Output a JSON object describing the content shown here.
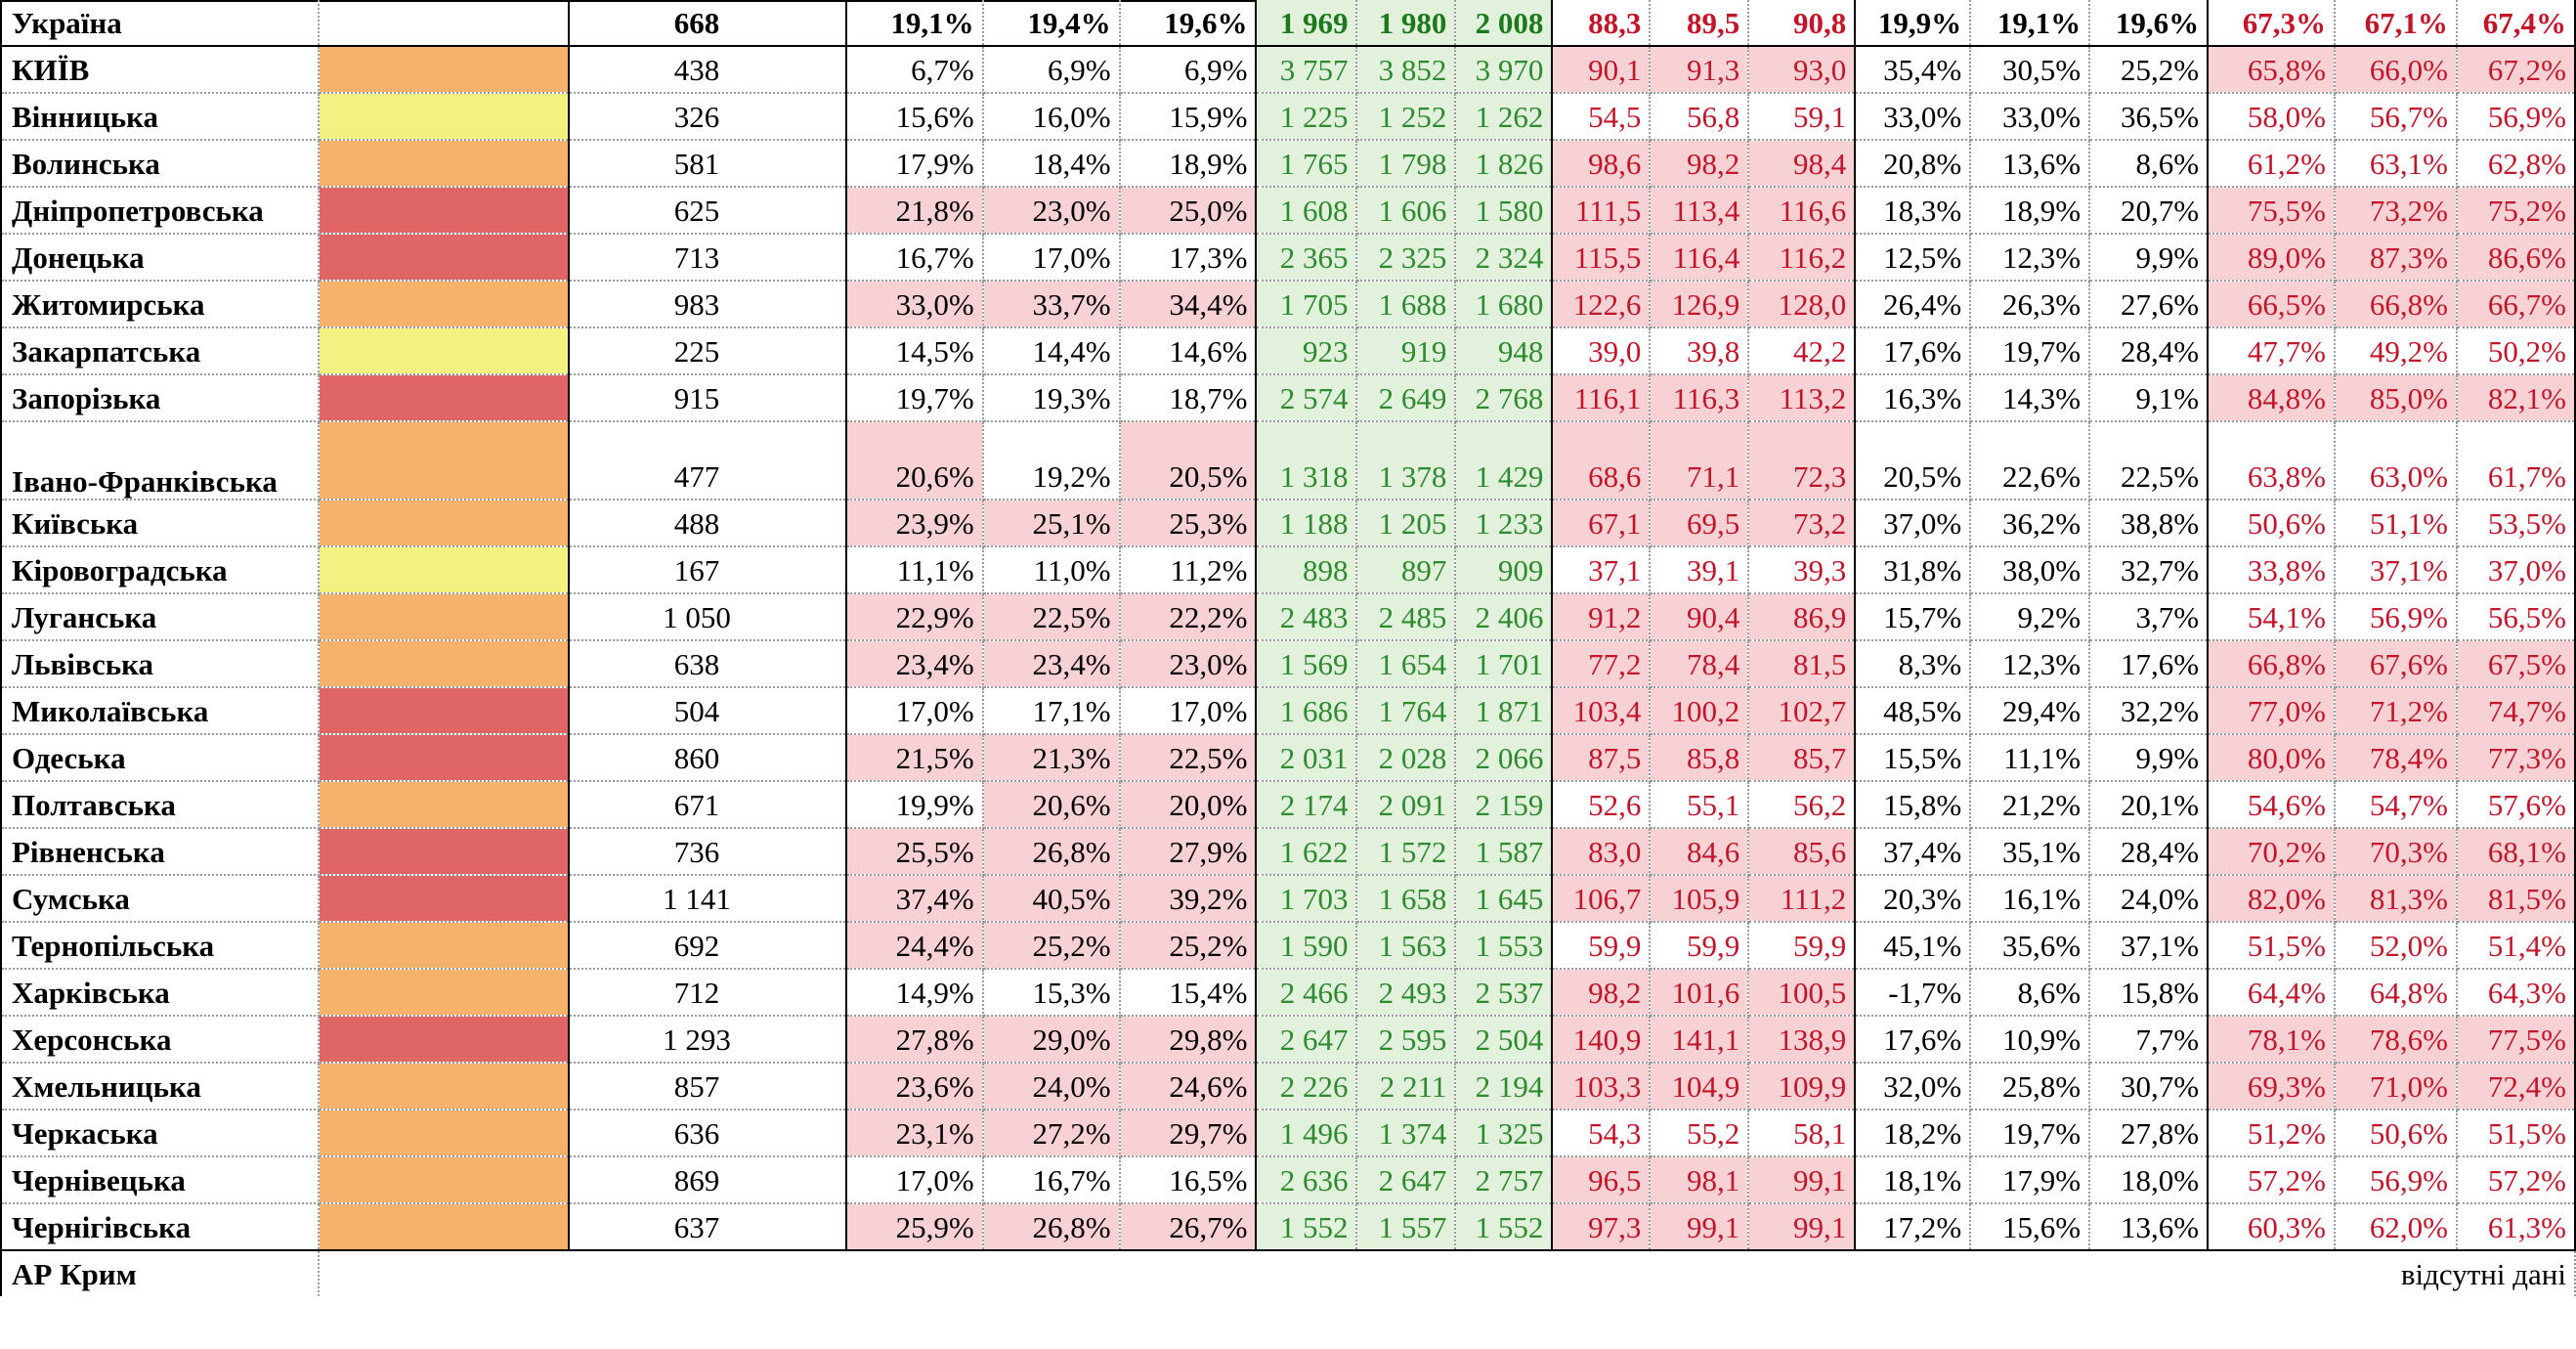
{
  "colors": {
    "risk_red": "#e06666",
    "risk_orange": "#f6b26b",
    "risk_yellow": "#f1f27f",
    "highlight_pink": "#f8d1d4",
    "green_cell_bg": "#e1f1dc",
    "green_text": "#2e8a2e",
    "red_text": "#c2152a"
  },
  "rows": [
    {
      "region": "Україна",
      "risk": "",
      "pop": "668",
      "s1": [
        "19,1%",
        "19,4%",
        "19,6%"
      ],
      "s2": [
        "1 969",
        "1 980",
        "2 008"
      ],
      "s3": [
        "88,3",
        "89,5",
        "90,8"
      ],
      "s4": [
        "19,9%",
        "19,1%",
        "19,6%"
      ],
      "s5": [
        "67,3%",
        "67,1%",
        "67,4%"
      ],
      "hl1": [
        0,
        0,
        0
      ],
      "hl3": [
        0,
        0,
        0
      ],
      "hl5": [
        0,
        0,
        0
      ]
    },
    {
      "region": "КИЇВ",
      "risk": "orange",
      "pop": "438",
      "s1": [
        "6,7%",
        "6,9%",
        "6,9%"
      ],
      "s2": [
        "3 757",
        "3 852",
        "3 970"
      ],
      "s3": [
        "90,1",
        "91,3",
        "93,0"
      ],
      "s4": [
        "35,4%",
        "30,5%",
        "25,2%"
      ],
      "s5": [
        "65,8%",
        "66,0%",
        "67,2%"
      ],
      "hl1": [
        0,
        0,
        0
      ],
      "hl3": [
        1,
        1,
        1
      ],
      "hl5": [
        1,
        1,
        1
      ]
    },
    {
      "region": "Вінницька",
      "risk": "yellow",
      "pop": "326",
      "s1": [
        "15,6%",
        "16,0%",
        "15,9%"
      ],
      "s2": [
        "1 225",
        "1 252",
        "1 262"
      ],
      "s3": [
        "54,5",
        "56,8",
        "59,1"
      ],
      "s4": [
        "33,0%",
        "33,0%",
        "36,5%"
      ],
      "s5": [
        "58,0%",
        "56,7%",
        "56,9%"
      ],
      "hl1": [
        0,
        0,
        0
      ],
      "hl3": [
        0,
        0,
        0
      ],
      "hl5": [
        0,
        0,
        0
      ]
    },
    {
      "region": "Волинська",
      "risk": "orange",
      "pop": "581",
      "s1": [
        "17,9%",
        "18,4%",
        "18,9%"
      ],
      "s2": [
        "1 765",
        "1 798",
        "1 826"
      ],
      "s3": [
        "98,6",
        "98,2",
        "98,4"
      ],
      "s4": [
        "20,8%",
        "13,6%",
        "8,6%"
      ],
      "s5": [
        "61,2%",
        "63,1%",
        "62,8%"
      ],
      "hl1": [
        0,
        0,
        0
      ],
      "hl3": [
        1,
        1,
        1
      ],
      "hl5": [
        0,
        0,
        0
      ]
    },
    {
      "region": "Дніпропетровська",
      "risk": "red",
      "pop": "625",
      "s1": [
        "21,8%",
        "23,0%",
        "25,0%"
      ],
      "s2": [
        "1 608",
        "1 606",
        "1 580"
      ],
      "s3": [
        "111,5",
        "113,4",
        "116,6"
      ],
      "s4": [
        "18,3%",
        "18,9%",
        "20,7%"
      ],
      "s5": [
        "75,5%",
        "73,2%",
        "75,2%"
      ],
      "hl1": [
        1,
        1,
        1
      ],
      "hl3": [
        1,
        1,
        1
      ],
      "hl5": [
        1,
        1,
        1
      ]
    },
    {
      "region": "Донецька",
      "risk": "red",
      "pop": "713",
      "s1": [
        "16,7%",
        "17,0%",
        "17,3%"
      ],
      "s2": [
        "2 365",
        "2 325",
        "2 324"
      ],
      "s3": [
        "115,5",
        "116,4",
        "116,2"
      ],
      "s4": [
        "12,5%",
        "12,3%",
        "9,9%"
      ],
      "s5": [
        "89,0%",
        "87,3%",
        "86,6%"
      ],
      "hl1": [
        0,
        0,
        0
      ],
      "hl3": [
        1,
        1,
        1
      ],
      "hl5": [
        1,
        1,
        1
      ]
    },
    {
      "region": "Житомирська",
      "risk": "orange",
      "pop": "983",
      "s1": [
        "33,0%",
        "33,7%",
        "34,4%"
      ],
      "s2": [
        "1 705",
        "1 688",
        "1 680"
      ],
      "s3": [
        "122,6",
        "126,9",
        "128,0"
      ],
      "s4": [
        "26,4%",
        "26,3%",
        "27,6%"
      ],
      "s5": [
        "66,5%",
        "66,8%",
        "66,7%"
      ],
      "hl1": [
        1,
        1,
        1
      ],
      "hl3": [
        1,
        1,
        1
      ],
      "hl5": [
        1,
        1,
        1
      ]
    },
    {
      "region": "Закарпатська",
      "risk": "yellow",
      "pop": "225",
      "s1": [
        "14,5%",
        "14,4%",
        "14,6%"
      ],
      "s2": [
        "923",
        "919",
        "948"
      ],
      "s3": [
        "39,0",
        "39,8",
        "42,2"
      ],
      "s4": [
        "17,6%",
        "19,7%",
        "28,4%"
      ],
      "s5": [
        "47,7%",
        "49,2%",
        "50,2%"
      ],
      "hl1": [
        0,
        0,
        0
      ],
      "hl3": [
        0,
        0,
        0
      ],
      "hl5": [
        0,
        0,
        0
      ]
    },
    {
      "region": "Запорізька",
      "risk": "red",
      "pop": "915",
      "s1": [
        "19,7%",
        "19,3%",
        "18,7%"
      ],
      "s2": [
        "2 574",
        "2 649",
        "2 768"
      ],
      "s3": [
        "116,1",
        "116,3",
        "113,2"
      ],
      "s4": [
        "16,3%",
        "14,3%",
        "9,1%"
      ],
      "s5": [
        "84,8%",
        "85,0%",
        "82,1%"
      ],
      "hl1": [
        0,
        0,
        0
      ],
      "hl3": [
        1,
        1,
        1
      ],
      "hl5": [
        1,
        1,
        1
      ]
    },
    {
      "region": "Івано-Франківська",
      "risk": "orange",
      "pop": "477",
      "s1": [
        "20,6%",
        "19,2%",
        "20,5%"
      ],
      "s2": [
        "1 318",
        "1 378",
        "1 429"
      ],
      "s3": [
        "68,6",
        "71,1",
        "72,3"
      ],
      "s4": [
        "20,5%",
        "22,6%",
        "22,5%"
      ],
      "s5": [
        "63,8%",
        "63,0%",
        "61,7%"
      ],
      "hl1": [
        1,
        0,
        1
      ],
      "hl3": [
        1,
        1,
        1
      ],
      "hl5": [
        0,
        0,
        0
      ],
      "tall": true
    },
    {
      "region": "Київська",
      "risk": "orange",
      "pop": "488",
      "s1": [
        "23,9%",
        "25,1%",
        "25,3%"
      ],
      "s2": [
        "1 188",
        "1 205",
        "1 233"
      ],
      "s3": [
        "67,1",
        "69,5",
        "73,2"
      ],
      "s4": [
        "37,0%",
        "36,2%",
        "38,8%"
      ],
      "s5": [
        "50,6%",
        "51,1%",
        "53,5%"
      ],
      "hl1": [
        1,
        1,
        1
      ],
      "hl3": [
        1,
        1,
        1
      ],
      "hl5": [
        0,
        0,
        0
      ]
    },
    {
      "region": "Кіровоградська",
      "risk": "yellow",
      "pop": "167",
      "s1": [
        "11,1%",
        "11,0%",
        "11,2%"
      ],
      "s2": [
        "898",
        "897",
        "909"
      ],
      "s3": [
        "37,1",
        "39,1",
        "39,3"
      ],
      "s4": [
        "31,8%",
        "38,0%",
        "32,7%"
      ],
      "s5": [
        "33,8%",
        "37,1%",
        "37,0%"
      ],
      "hl1": [
        0,
        0,
        0
      ],
      "hl3": [
        0,
        0,
        0
      ],
      "hl5": [
        0,
        0,
        0
      ]
    },
    {
      "region": "Луганська",
      "risk": "orange",
      "pop": "1 050",
      "s1": [
        "22,9%",
        "22,5%",
        "22,2%"
      ],
      "s2": [
        "2 483",
        "2 485",
        "2 406"
      ],
      "s3": [
        "91,2",
        "90,4",
        "86,9"
      ],
      "s4": [
        "15,7%",
        "9,2%",
        "3,7%"
      ],
      "s5": [
        "54,1%",
        "56,9%",
        "56,5%"
      ],
      "hl1": [
        1,
        1,
        1
      ],
      "hl3": [
        1,
        1,
        1
      ],
      "hl5": [
        0,
        0,
        0
      ]
    },
    {
      "region": "Львівська",
      "risk": "orange",
      "pop": "638",
      "s1": [
        "23,4%",
        "23,4%",
        "23,0%"
      ],
      "s2": [
        "1 569",
        "1 654",
        "1 701"
      ],
      "s3": [
        "77,2",
        "78,4",
        "81,5"
      ],
      "s4": [
        "8,3%",
        "12,3%",
        "17,6%"
      ],
      "s5": [
        "66,8%",
        "67,6%",
        "67,5%"
      ],
      "hl1": [
        1,
        1,
        1
      ],
      "hl3": [
        1,
        1,
        1
      ],
      "hl5": [
        1,
        1,
        1
      ]
    },
    {
      "region": "Миколаївська",
      "risk": "red",
      "pop": "504",
      "s1": [
        "17,0%",
        "17,1%",
        "17,0%"
      ],
      "s2": [
        "1 686",
        "1 764",
        "1 871"
      ],
      "s3": [
        "103,4",
        "100,2",
        "102,7"
      ],
      "s4": [
        "48,5%",
        "29,4%",
        "32,2%"
      ],
      "s5": [
        "77,0%",
        "71,2%",
        "74,7%"
      ],
      "hl1": [
        0,
        0,
        0
      ],
      "hl3": [
        1,
        1,
        1
      ],
      "hl5": [
        1,
        1,
        1
      ]
    },
    {
      "region": "Одеська",
      "risk": "red",
      "pop": "860",
      "s1": [
        "21,5%",
        "21,3%",
        "22,5%"
      ],
      "s2": [
        "2 031",
        "2 028",
        "2 066"
      ],
      "s3": [
        "87,5",
        "85,8",
        "85,7"
      ],
      "s4": [
        "15,5%",
        "11,1%",
        "9,9%"
      ],
      "s5": [
        "80,0%",
        "78,4%",
        "77,3%"
      ],
      "hl1": [
        1,
        1,
        1
      ],
      "hl3": [
        1,
        1,
        1
      ],
      "hl5": [
        1,
        1,
        1
      ]
    },
    {
      "region": "Полтавська",
      "risk": "orange",
      "pop": "671",
      "s1": [
        "19,9%",
        "20,6%",
        "20,0%"
      ],
      "s2": [
        "2 174",
        "2 091",
        "2 159"
      ],
      "s3": [
        "52,6",
        "55,1",
        "56,2"
      ],
      "s4": [
        "15,8%",
        "21,2%",
        "20,1%"
      ],
      "s5": [
        "54,6%",
        "54,7%",
        "57,6%"
      ],
      "hl1": [
        0,
        1,
        1
      ],
      "hl3": [
        0,
        0,
        0
      ],
      "hl5": [
        0,
        0,
        0
      ]
    },
    {
      "region": "Рівненська",
      "risk": "red",
      "pop": "736",
      "s1": [
        "25,5%",
        "26,8%",
        "27,9%"
      ],
      "s2": [
        "1 622",
        "1 572",
        "1 587"
      ],
      "s3": [
        "83,0",
        "84,6",
        "85,6"
      ],
      "s4": [
        "37,4%",
        "35,1%",
        "28,4%"
      ],
      "s5": [
        "70,2%",
        "70,3%",
        "68,1%"
      ],
      "hl1": [
        1,
        1,
        1
      ],
      "hl3": [
        1,
        1,
        1
      ],
      "hl5": [
        1,
        1,
        1
      ]
    },
    {
      "region": "Сумська",
      "risk": "red",
      "pop": "1 141",
      "s1": [
        "37,4%",
        "40,5%",
        "39,2%"
      ],
      "s2": [
        "1 703",
        "1 658",
        "1 645"
      ],
      "s3": [
        "106,7",
        "105,9",
        "111,2"
      ],
      "s4": [
        "20,3%",
        "16,1%",
        "24,0%"
      ],
      "s5": [
        "82,0%",
        "81,3%",
        "81,5%"
      ],
      "hl1": [
        1,
        1,
        1
      ],
      "hl3": [
        1,
        1,
        1
      ],
      "hl5": [
        1,
        1,
        1
      ]
    },
    {
      "region": "Тернопільська",
      "risk": "orange",
      "pop": "692",
      "s1": [
        "24,4%",
        "25,2%",
        "25,2%"
      ],
      "s2": [
        "1 590",
        "1 563",
        "1 553"
      ],
      "s3": [
        "59,9",
        "59,9",
        "59,9"
      ],
      "s4": [
        "45,1%",
        "35,6%",
        "37,1%"
      ],
      "s5": [
        "51,5%",
        "52,0%",
        "51,4%"
      ],
      "hl1": [
        1,
        1,
        1
      ],
      "hl3": [
        0,
        0,
        0
      ],
      "hl5": [
        0,
        0,
        0
      ]
    },
    {
      "region": "Харківська",
      "risk": "orange",
      "pop": "712",
      "s1": [
        "14,9%",
        "15,3%",
        "15,4%"
      ],
      "s2": [
        "2 466",
        "2 493",
        "2 537"
      ],
      "s3": [
        "98,2",
        "101,6",
        "100,5"
      ],
      "s4": [
        "-1,7%",
        "8,6%",
        "15,8%"
      ],
      "s5": [
        "64,4%",
        "64,8%",
        "64,3%"
      ],
      "hl1": [
        0,
        0,
        0
      ],
      "hl3": [
        1,
        1,
        1
      ],
      "hl5": [
        0,
        0,
        0
      ]
    },
    {
      "region": "Херсонська",
      "risk": "red",
      "pop": "1 293",
      "s1": [
        "27,8%",
        "29,0%",
        "29,8%"
      ],
      "s2": [
        "2 647",
        "2 595",
        "2 504"
      ],
      "s3": [
        "140,9",
        "141,1",
        "138,9"
      ],
      "s4": [
        "17,6%",
        "10,9%",
        "7,7%"
      ],
      "s5": [
        "78,1%",
        "78,6%",
        "77,5%"
      ],
      "hl1": [
        1,
        1,
        1
      ],
      "hl3": [
        1,
        1,
        1
      ],
      "hl5": [
        1,
        1,
        1
      ]
    },
    {
      "region": "Хмельницька",
      "risk": "orange",
      "pop": "857",
      "s1": [
        "23,6%",
        "24,0%",
        "24,6%"
      ],
      "s2": [
        "2 226",
        "2 211",
        "2 194"
      ],
      "s3": [
        "103,3",
        "104,9",
        "109,9"
      ],
      "s4": [
        "32,0%",
        "25,8%",
        "30,7%"
      ],
      "s5": [
        "69,3%",
        "71,0%",
        "72,4%"
      ],
      "hl1": [
        1,
        1,
        1
      ],
      "hl3": [
        1,
        1,
        1
      ],
      "hl5": [
        1,
        1,
        1
      ]
    },
    {
      "region": "Черкаська",
      "risk": "orange",
      "pop": "636",
      "s1": [
        "23,1%",
        "27,2%",
        "29,7%"
      ],
      "s2": [
        "1 496",
        "1 374",
        "1 325"
      ],
      "s3": [
        "54,3",
        "55,2",
        "58,1"
      ],
      "s4": [
        "18,2%",
        "19,7%",
        "27,8%"
      ],
      "s5": [
        "51,2%",
        "50,6%",
        "51,5%"
      ],
      "hl1": [
        1,
        1,
        1
      ],
      "hl3": [
        0,
        0,
        0
      ],
      "hl5": [
        0,
        0,
        0
      ]
    },
    {
      "region": "Чернівецька",
      "risk": "orange",
      "pop": "869",
      "s1": [
        "17,0%",
        "16,7%",
        "16,5%"
      ],
      "s2": [
        "2 636",
        "2 647",
        "2 757"
      ],
      "s3": [
        "96,5",
        "98,1",
        "99,1"
      ],
      "s4": [
        "18,1%",
        "17,9%",
        "18,0%"
      ],
      "s5": [
        "57,2%",
        "56,9%",
        "57,2%"
      ],
      "hl1": [
        0,
        0,
        0
      ],
      "hl3": [
        1,
        1,
        1
      ],
      "hl5": [
        0,
        0,
        0
      ]
    },
    {
      "region": "Чернігівська",
      "risk": "orange",
      "pop": "637",
      "s1": [
        "25,9%",
        "26,8%",
        "26,7%"
      ],
      "s2": [
        "1 552",
        "1 557",
        "1 552"
      ],
      "s3": [
        "97,3",
        "99,1",
        "99,1"
      ],
      "s4": [
        "17,2%",
        "15,6%",
        "13,6%"
      ],
      "s5": [
        "60,3%",
        "62,0%",
        "61,3%"
      ],
      "hl1": [
        1,
        1,
        1
      ],
      "hl3": [
        1,
        1,
        1
      ],
      "hl5": [
        0,
        0,
        0
      ]
    }
  ],
  "crimea": {
    "region": "АР Крим",
    "note": "відсутні дані"
  }
}
